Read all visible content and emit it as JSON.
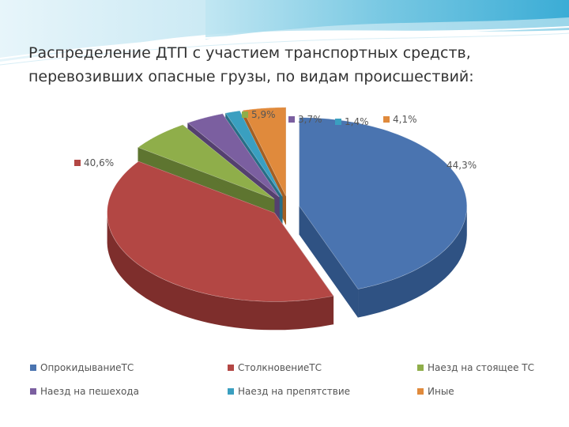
{
  "title": {
    "line1": "Распределение ДТП с участием транспортных средств,",
    "line2": "перевозивших опасные грузы, по видам происшествий:"
  },
  "chart_data": {
    "type": "pie",
    "style": "3d-exploded",
    "start_angle_deg": 90,
    "legend_position": "bottom",
    "slices": [
      {
        "name": "ОпрокидываниеТС",
        "value": 44.3,
        "label": "44,3%",
        "color": "#4a74b0",
        "side": "#2f5283"
      },
      {
        "name": "СтолкновениеТС",
        "value": 40.6,
        "label": "40,6%",
        "color": "#b34744",
        "side": "#7e2e2c"
      },
      {
        "name": "Наезд на стоящее ТС",
        "value": 5.9,
        "label": "5,9%",
        "color": "#8fae4a",
        "side": "#5e7530"
      },
      {
        "name": "Наезд на пешехода",
        "value": 3.7,
        "label": "3,7%",
        "color": "#7b5fa0",
        "side": "#54406f"
      },
      {
        "name": "Наезд на препятствие",
        "value": 1.4,
        "label": "1,4%",
        "color": "#3a9fc0",
        "side": "#276e86"
      },
      {
        "name": "Иные",
        "value": 4.1,
        "label": "4,1%",
        "color": "#e08a3c",
        "side": "#a55f22"
      }
    ]
  }
}
